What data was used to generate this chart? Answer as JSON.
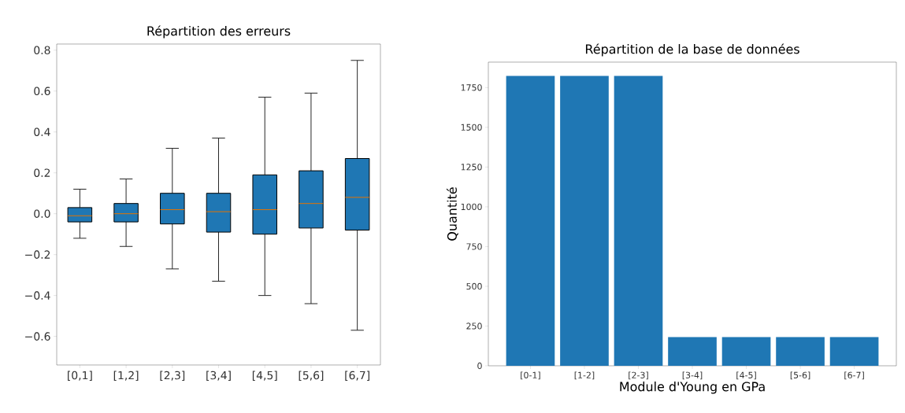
{
  "chart_data": [
    {
      "type": "box",
      "title": "Répartition des erreurs",
      "categories": [
        "[0,1]",
        "[1,2]",
        "[2,3]",
        "[3,4]",
        "[4,5]",
        "[5,6]",
        "[6,7]"
      ],
      "color": "#1f77b4",
      "boxes": [
        {
          "low": -0.12,
          "q1": -0.04,
          "median": -0.01,
          "q3": 0.03,
          "high": 0.12
        },
        {
          "low": -0.16,
          "q1": -0.04,
          "median": 0.0,
          "q3": 0.05,
          "high": 0.17
        },
        {
          "low": -0.27,
          "q1": -0.05,
          "median": 0.02,
          "q3": 0.1,
          "high": 0.32
        },
        {
          "low": -0.33,
          "q1": -0.09,
          "median": 0.01,
          "q3": 0.1,
          "high": 0.37
        },
        {
          "low": -0.4,
          "q1": -0.1,
          "median": 0.02,
          "q3": 0.19,
          "high": 0.57
        },
        {
          "low": -0.44,
          "q1": -0.07,
          "median": 0.05,
          "q3": 0.21,
          "high": 0.59
        },
        {
          "low": -0.57,
          "q1": -0.08,
          "median": 0.08,
          "q3": 0.27,
          "high": 0.75
        }
      ],
      "ylim": [
        -0.74,
        0.83
      ],
      "yticks": [
        {
          "value": -0.6,
          "label": "−0.6"
        },
        {
          "value": -0.4,
          "label": "−0.4"
        },
        {
          "value": -0.2,
          "label": "−0.2"
        },
        {
          "value": 0.0,
          "label": "0.0"
        },
        {
          "value": 0.2,
          "label": "0.2"
        },
        {
          "value": 0.4,
          "label": "0.4"
        },
        {
          "value": 0.6,
          "label": "0.6"
        },
        {
          "value": 0.8,
          "label": "0.8"
        }
      ]
    },
    {
      "type": "bar",
      "title": "Répartition de la base de données",
      "xlabel": "Module d'Young en GPa",
      "ylabel": "Quantité",
      "categories": [
        "[0-1]",
        "[1-2]",
        "[2-3]",
        "[3-4]",
        "[4-5]",
        "[5-6]",
        "[6-7]"
      ],
      "color": "#1f77b4",
      "values": [
        1823,
        1823,
        1823,
        180,
        180,
        180,
        180
      ],
      "ylim": [
        0,
        1910
      ],
      "yticks": [
        0,
        250,
        500,
        750,
        1000,
        1250,
        1500,
        1750
      ]
    }
  ]
}
